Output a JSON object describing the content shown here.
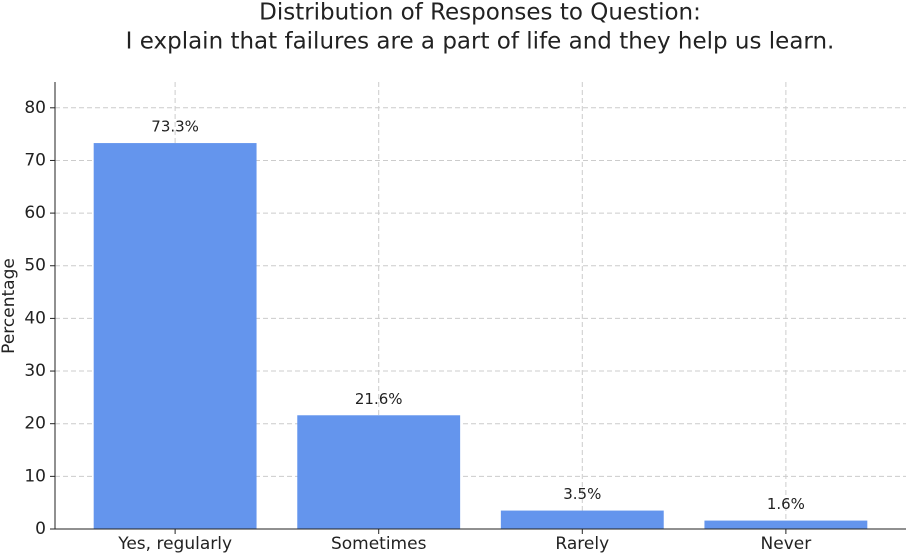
{
  "chart_data": {
    "type": "bar",
    "title": [
      "Distribution of Responses to Question:",
      "I explain that failures are a part of life and they help us learn."
    ],
    "y_label": "Percentage",
    "categories": [
      "Yes, regularly",
      "Sometimes",
      "Rarely",
      "Never"
    ],
    "values": [
      73.3,
      21.6,
      3.5,
      1.6
    ],
    "value_labels": [
      "73.3%",
      "21.6%",
      "3.5%",
      "1.6%"
    ],
    "color": "#6495ed",
    "ylim": [
      0,
      84.9
    ],
    "yticks": [
      0,
      10,
      20,
      30,
      40,
      50,
      60,
      70,
      80
    ],
    "grid": true
  }
}
